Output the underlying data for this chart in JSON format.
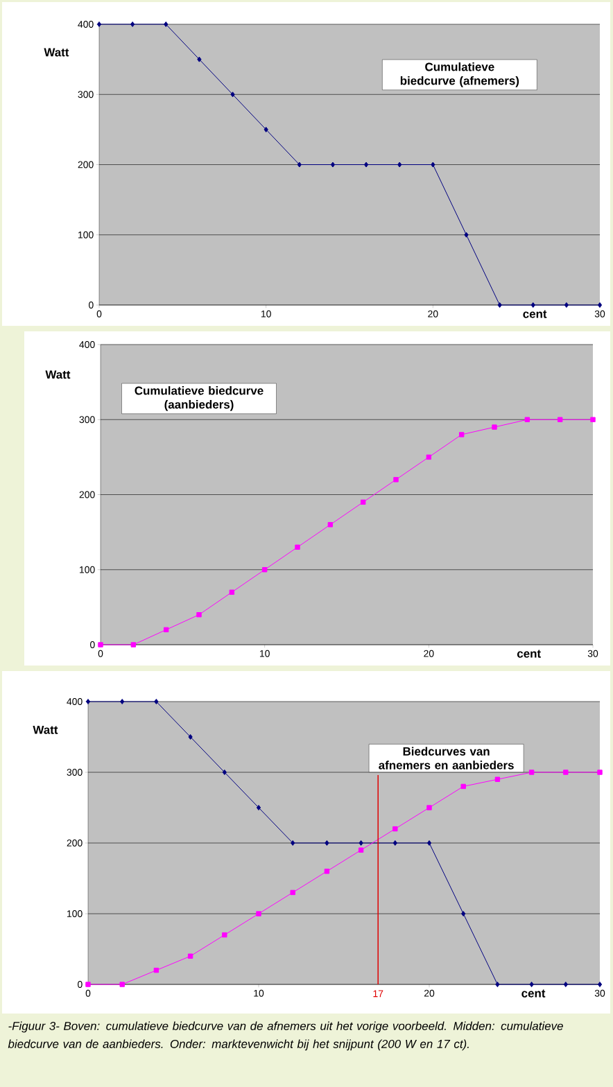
{
  "chart_data": [
    {
      "type": "line",
      "title": "Cumulatieve biedcurve (afnemers)",
      "xlabel": "cent",
      "ylabel": "Watt",
      "xlim": [
        0,
        30
      ],
      "ylim": [
        0,
        400
      ],
      "xticks": [
        0,
        10,
        20,
        30
      ],
      "yticks": [
        0,
        100,
        200,
        300,
        400
      ],
      "grid": "y",
      "series": [
        {
          "color": "#000080",
          "marker": "diamond",
          "x": [
            0,
            2,
            4,
            6,
            8,
            10,
            12,
            14,
            16,
            18,
            20,
            22,
            24,
            26,
            28,
            30
          ],
          "values": [
            400,
            400,
            400,
            350,
            300,
            250,
            200,
            200,
            200,
            200,
            200,
            100,
            0,
            0,
            0,
            0
          ]
        }
      ]
    },
    {
      "type": "line",
      "title": "Cumulatieve biedcurve (aanbieders)",
      "xlabel": "cent",
      "ylabel": "Watt",
      "xlim": [
        0,
        30
      ],
      "ylim": [
        0,
        400
      ],
      "xticks": [
        0,
        10,
        20,
        30
      ],
      "yticks": [
        0,
        100,
        200,
        300,
        400
      ],
      "grid": "y",
      "series": [
        {
          "color": "#ff00ff",
          "marker": "square",
          "x": [
            0,
            2,
            4,
            6,
            8,
            10,
            12,
            14,
            16,
            18,
            20,
            22,
            24,
            26,
            28,
            30
          ],
          "values": [
            0,
            0,
            20,
            40,
            70,
            100,
            130,
            160,
            190,
            220,
            250,
            280,
            290,
            300,
            300,
            300
          ]
        }
      ]
    },
    {
      "type": "line",
      "title": "Biedcurves van afnemers en aanbieders",
      "xlabel": "cent",
      "ylabel": "Watt",
      "xlim": [
        0,
        30
      ],
      "ylim": [
        0,
        400
      ],
      "xticks": [
        0,
        10,
        20,
        30
      ],
      "yticks": [
        0,
        100,
        200,
        300,
        400
      ],
      "grid": "y",
      "series": [
        {
          "color": "#000080",
          "marker": "diamond",
          "x": [
            0,
            2,
            4,
            6,
            8,
            10,
            12,
            14,
            16,
            18,
            20,
            22,
            24,
            26,
            28,
            30
          ],
          "values": [
            400,
            400,
            400,
            350,
            300,
            250,
            200,
            200,
            200,
            200,
            200,
            100,
            0,
            0,
            0,
            0
          ]
        },
        {
          "color": "#ff00ff",
          "marker": "square",
          "x": [
            0,
            2,
            4,
            6,
            8,
            10,
            12,
            14,
            16,
            18,
            20,
            22,
            24,
            26,
            28,
            30
          ],
          "values": [
            0,
            0,
            20,
            40,
            70,
            100,
            130,
            160,
            190,
            220,
            250,
            280,
            290,
            300,
            300,
            300
          ]
        }
      ],
      "ref_lines": [
        {
          "axis": "x",
          "value": 17,
          "label": "17",
          "color": "#e00000"
        }
      ],
      "annotations": [
        "-Figuur 3- Boven: cumulatieve biedcurve van de afnemers uit het vorige voorbeeld. Midden: cumulatieve biedcurve van de aanbieders. Onder: marktevenwicht bij het snijpunt (200 W en 17 ct)."
      ]
    }
  ]
}
